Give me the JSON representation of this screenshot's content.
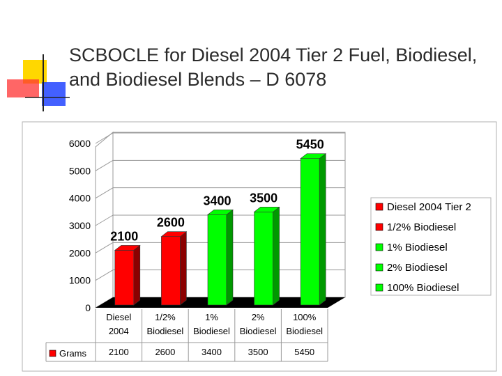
{
  "slide": {
    "title": "SCBOCLE for Diesel 2004 Tier 2 Fuel, Biodiesel, and Biodiesel Blends – D 6078"
  },
  "colors": {
    "red_face": "#ff0000",
    "red_side": "#8b0000",
    "green_face": "#00ff00",
    "green_side": "#009900"
  },
  "chart_data": {
    "type": "bar",
    "categories": [
      [
        "Diesel",
        "2004"
      ],
      [
        "1/2%",
        "Biodiesel"
      ],
      [
        "1%",
        "Biodiesel"
      ],
      [
        "2%",
        "Biodiesel"
      ],
      [
        "100%",
        "Biodiesel"
      ]
    ],
    "series": [
      {
        "name": "Grams",
        "values": [
          2100,
          2600,
          3400,
          3500,
          5450
        ]
      }
    ],
    "bar_colors": [
      "red",
      "red",
      "green",
      "green",
      "green"
    ],
    "yticks": [
      0,
      1000,
      2000,
      3000,
      4000,
      5000,
      6000
    ],
    "ylim": [
      0,
      6000
    ],
    "grid": true,
    "data_labels": true,
    "data_table": true,
    "legend": {
      "position": "right",
      "entries": [
        {
          "label": "Diesel 2004 Tier 2",
          "color": "red"
        },
        {
          "label": "1/2% Biodiesel",
          "color": "red"
        },
        {
          "label": "1% Biodiesel",
          "color": "green"
        },
        {
          "label": "2% Biodiesel",
          "color": "green"
        },
        {
          "label": "100% Biodiesel",
          "color": "green"
        }
      ]
    }
  }
}
